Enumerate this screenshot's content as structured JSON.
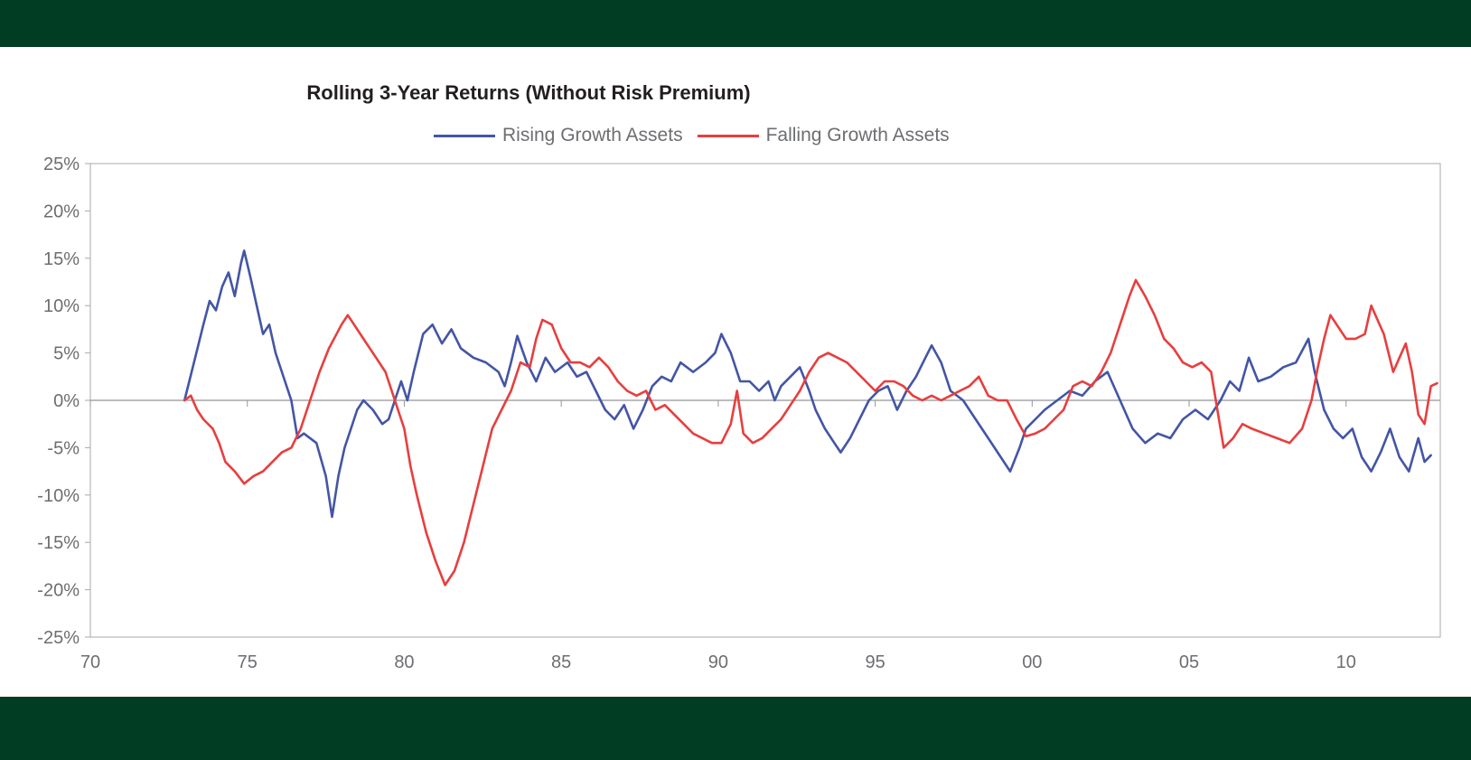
{
  "chart_data": {
    "type": "line",
    "title": "Rolling 3-Year Returns (Without Risk Premium)",
    "xlabel": "",
    "ylabel": "",
    "xlim": [
      1970,
      2013
    ],
    "ylim": [
      -25,
      25
    ],
    "y_ticks": [
      "25%",
      "20%",
      "15%",
      "10%",
      "5%",
      "0%",
      "-5%",
      "-10%",
      "-15%",
      "-20%",
      "-25%"
    ],
    "y_tick_values": [
      25,
      20,
      15,
      10,
      5,
      0,
      -5,
      -10,
      -15,
      -20,
      -25
    ],
    "x_ticks": [
      "70",
      "75",
      "80",
      "85",
      "90",
      "95",
      "00",
      "05",
      "10"
    ],
    "x_tick_values": [
      1970,
      1975,
      1980,
      1985,
      1990,
      1995,
      2000,
      2005,
      2010
    ],
    "grid": false,
    "legend_position": "top-center",
    "series": [
      {
        "name": "Rising Growth Assets",
        "color": "#4355a5",
        "points": [
          [
            1973.0,
            0
          ],
          [
            1973.3,
            4
          ],
          [
            1973.6,
            8
          ],
          [
            1973.8,
            10.5
          ],
          [
            1974.0,
            9.5
          ],
          [
            1974.2,
            12
          ],
          [
            1974.4,
            13.5
          ],
          [
            1974.6,
            11
          ],
          [
            1974.8,
            14.5
          ],
          [
            1974.9,
            15.8
          ],
          [
            1975.1,
            13
          ],
          [
            1975.3,
            10
          ],
          [
            1975.5,
            7
          ],
          [
            1975.7,
            8
          ],
          [
            1975.9,
            5
          ],
          [
            1976.2,
            2
          ],
          [
            1976.4,
            0
          ],
          [
            1976.6,
            -4
          ],
          [
            1976.8,
            -3.5
          ],
          [
            1977.0,
            -4
          ],
          [
            1977.2,
            -4.5
          ],
          [
            1977.5,
            -8
          ],
          [
            1977.7,
            -12.3
          ],
          [
            1977.9,
            -8
          ],
          [
            1978.1,
            -5
          ],
          [
            1978.3,
            -3
          ],
          [
            1978.5,
            -1
          ],
          [
            1978.7,
            0
          ],
          [
            1979.0,
            -1
          ],
          [
            1979.3,
            -2.5
          ],
          [
            1979.5,
            -2
          ],
          [
            1979.7,
            0
          ],
          [
            1979.9,
            2
          ],
          [
            1980.1,
            0
          ],
          [
            1980.3,
            3
          ],
          [
            1980.6,
            7
          ],
          [
            1980.9,
            8
          ],
          [
            1981.2,
            6
          ],
          [
            1981.5,
            7.5
          ],
          [
            1981.8,
            5.5
          ],
          [
            1982.2,
            4.5
          ],
          [
            1982.6,
            4
          ],
          [
            1983.0,
            3
          ],
          [
            1983.2,
            1.5
          ],
          [
            1983.4,
            4
          ],
          [
            1983.6,
            6.8
          ],
          [
            1983.9,
            4
          ],
          [
            1984.2,
            2
          ],
          [
            1984.5,
            4.5
          ],
          [
            1984.8,
            3
          ],
          [
            1985.2,
            4
          ],
          [
            1985.5,
            2.5
          ],
          [
            1985.8,
            3
          ],
          [
            1986.1,
            1
          ],
          [
            1986.4,
            -1
          ],
          [
            1986.7,
            -2
          ],
          [
            1987.0,
            -0.5
          ],
          [
            1987.3,
            -3
          ],
          [
            1987.6,
            -1
          ],
          [
            1987.9,
            1.5
          ],
          [
            1988.2,
            2.5
          ],
          [
            1988.5,
            2
          ],
          [
            1988.8,
            4
          ],
          [
            1989.2,
            3
          ],
          [
            1989.6,
            4
          ],
          [
            1989.9,
            5
          ],
          [
            1990.1,
            7
          ],
          [
            1990.4,
            5
          ],
          [
            1990.7,
            2
          ],
          [
            1991.0,
            2
          ],
          [
            1991.3,
            1
          ],
          [
            1991.6,
            2
          ],
          [
            1991.8,
            0
          ],
          [
            1992.0,
            1.5
          ],
          [
            1992.3,
            2.5
          ],
          [
            1992.6,
            3.5
          ],
          [
            1992.9,
            1
          ],
          [
            1993.1,
            -1
          ],
          [
            1993.4,
            -3
          ],
          [
            1993.7,
            -4.5
          ],
          [
            1993.9,
            -5.5
          ],
          [
            1994.2,
            -4
          ],
          [
            1994.5,
            -2
          ],
          [
            1994.8,
            0
          ],
          [
            1995.1,
            1
          ],
          [
            1995.4,
            1.5
          ],
          [
            1995.7,
            -1
          ],
          [
            1996.0,
            1
          ],
          [
            1996.3,
            2.5
          ],
          [
            1996.6,
            4.5
          ],
          [
            1996.8,
            5.8
          ],
          [
            1997.1,
            4
          ],
          [
            1997.4,
            1
          ],
          [
            1997.8,
            0
          ],
          [
            1998.2,
            -2
          ],
          [
            1998.6,
            -4
          ],
          [
            1999.0,
            -6
          ],
          [
            1999.3,
            -7.5
          ],
          [
            1999.6,
            -5
          ],
          [
            1999.8,
            -3
          ],
          [
            2000.1,
            -2
          ],
          [
            2000.4,
            -1
          ],
          [
            2000.8,
            0
          ],
          [
            2001.2,
            1
          ],
          [
            2001.6,
            0.5
          ],
          [
            2002.0,
            2
          ],
          [
            2002.4,
            3
          ],
          [
            2002.8,
            0
          ],
          [
            2003.2,
            -3
          ],
          [
            2003.6,
            -4.5
          ],
          [
            2004.0,
            -3.5
          ],
          [
            2004.4,
            -4
          ],
          [
            2004.8,
            -2
          ],
          [
            2005.2,
            -1
          ],
          [
            2005.6,
            -2
          ],
          [
            2006.0,
            0
          ],
          [
            2006.3,
            2
          ],
          [
            2006.6,
            1
          ],
          [
            2006.9,
            4.5
          ],
          [
            2007.2,
            2
          ],
          [
            2007.6,
            2.5
          ],
          [
            2008.0,
            3.5
          ],
          [
            2008.4,
            4
          ],
          [
            2008.8,
            6.5
          ],
          [
            2009.0,
            3
          ],
          [
            2009.3,
            -1
          ],
          [
            2009.6,
            -3
          ],
          [
            2009.9,
            -4
          ],
          [
            2010.2,
            -3
          ],
          [
            2010.5,
            -6
          ],
          [
            2010.8,
            -7.5
          ],
          [
            2011.1,
            -5.5
          ],
          [
            2011.4,
            -3
          ],
          [
            2011.7,
            -6
          ],
          [
            2012.0,
            -7.5
          ],
          [
            2012.3,
            -4
          ],
          [
            2012.5,
            -6.5
          ],
          [
            2012.7,
            -5.8
          ]
        ]
      },
      {
        "name": "Falling Growth Assets",
        "color": "#e83e3e",
        "points": [
          [
            1973.0,
            0
          ],
          [
            1973.2,
            0.5
          ],
          [
            1973.4,
            -1
          ],
          [
            1973.6,
            -2
          ],
          [
            1973.9,
            -3
          ],
          [
            1974.1,
            -4.5
          ],
          [
            1974.3,
            -6.5
          ],
          [
            1974.6,
            -7.5
          ],
          [
            1974.9,
            -8.8
          ],
          [
            1975.2,
            -8
          ],
          [
            1975.5,
            -7.5
          ],
          [
            1975.8,
            -6.5
          ],
          [
            1976.1,
            -5.5
          ],
          [
            1976.4,
            -5
          ],
          [
            1976.7,
            -3
          ],
          [
            1977.0,
            0
          ],
          [
            1977.3,
            3
          ],
          [
            1977.6,
            5.5
          ],
          [
            1978.0,
            8
          ],
          [
            1978.2,
            9
          ],
          [
            1978.5,
            7.5
          ],
          [
            1978.8,
            6
          ],
          [
            1979.1,
            4.5
          ],
          [
            1979.4,
            3
          ],
          [
            1979.7,
            0
          ],
          [
            1980.0,
            -3
          ],
          [
            1980.2,
            -7
          ],
          [
            1980.4,
            -10
          ],
          [
            1980.7,
            -14
          ],
          [
            1981.0,
            -17
          ],
          [
            1981.3,
            -19.5
          ],
          [
            1981.6,
            -18
          ],
          [
            1981.9,
            -15
          ],
          [
            1982.2,
            -11
          ],
          [
            1982.5,
            -7
          ],
          [
            1982.8,
            -3
          ],
          [
            1983.1,
            -1
          ],
          [
            1983.4,
            1
          ],
          [
            1983.7,
            4
          ],
          [
            1984.0,
            3.5
          ],
          [
            1984.2,
            6.5
          ],
          [
            1984.4,
            8.5
          ],
          [
            1984.7,
            8
          ],
          [
            1985.0,
            5.5
          ],
          [
            1985.3,
            4
          ],
          [
            1985.6,
            4
          ],
          [
            1985.9,
            3.5
          ],
          [
            1986.2,
            4.5
          ],
          [
            1986.5,
            3.5
          ],
          [
            1986.8,
            2
          ],
          [
            1987.1,
            1
          ],
          [
            1987.4,
            0.5
          ],
          [
            1987.7,
            1
          ],
          [
            1988.0,
            -1
          ],
          [
            1988.3,
            -0.5
          ],
          [
            1988.6,
            -1.5
          ],
          [
            1988.9,
            -2.5
          ],
          [
            1989.2,
            -3.5
          ],
          [
            1989.5,
            -4
          ],
          [
            1989.8,
            -4.5
          ],
          [
            1990.1,
            -4.5
          ],
          [
            1990.4,
            -2.5
          ],
          [
            1990.6,
            1
          ],
          [
            1990.8,
            -3.5
          ],
          [
            1991.1,
            -4.5
          ],
          [
            1991.4,
            -4
          ],
          [
            1991.7,
            -3
          ],
          [
            1992.0,
            -2
          ],
          [
            1992.3,
            -0.5
          ],
          [
            1992.6,
            1
          ],
          [
            1992.9,
            3
          ],
          [
            1993.2,
            4.5
          ],
          [
            1993.5,
            5
          ],
          [
            1993.8,
            4.5
          ],
          [
            1994.1,
            4
          ],
          [
            1994.4,
            3
          ],
          [
            1994.7,
            2
          ],
          [
            1995.0,
            1
          ],
          [
            1995.3,
            2
          ],
          [
            1995.6,
            2
          ],
          [
            1995.9,
            1.5
          ],
          [
            1996.2,
            0.5
          ],
          [
            1996.5,
            0
          ],
          [
            1996.8,
            0.5
          ],
          [
            1997.1,
            0
          ],
          [
            1997.4,
            0.5
          ],
          [
            1997.7,
            1
          ],
          [
            1998.0,
            1.5
          ],
          [
            1998.3,
            2.5
          ],
          [
            1998.6,
            0.5
          ],
          [
            1998.9,
            0
          ],
          [
            1999.2,
            0
          ],
          [
            1999.5,
            -2
          ],
          [
            1999.8,
            -3.8
          ],
          [
            2000.1,
            -3.5
          ],
          [
            2000.4,
            -3
          ],
          [
            2000.7,
            -2
          ],
          [
            2001.0,
            -1
          ],
          [
            2001.3,
            1.5
          ],
          [
            2001.6,
            2
          ],
          [
            2001.9,
            1.5
          ],
          [
            2002.2,
            3
          ],
          [
            2002.5,
            5
          ],
          [
            2002.8,
            8
          ],
          [
            2003.1,
            11
          ],
          [
            2003.3,
            12.7
          ],
          [
            2003.6,
            11
          ],
          [
            2003.9,
            9
          ],
          [
            2004.2,
            6.5
          ],
          [
            2004.5,
            5.5
          ],
          [
            2004.8,
            4
          ],
          [
            2005.1,
            3.5
          ],
          [
            2005.4,
            4
          ],
          [
            2005.7,
            3
          ],
          [
            2005.9,
            -1
          ],
          [
            2006.1,
            -5
          ],
          [
            2006.4,
            -4
          ],
          [
            2006.7,
            -2.5
          ],
          [
            2007.0,
            -3
          ],
          [
            2007.4,
            -3.5
          ],
          [
            2007.8,
            -4
          ],
          [
            2008.2,
            -4.5
          ],
          [
            2008.6,
            -3
          ],
          [
            2008.9,
            0
          ],
          [
            2009.1,
            3.5
          ],
          [
            2009.3,
            6.5
          ],
          [
            2009.5,
            9
          ],
          [
            2009.7,
            8
          ],
          [
            2010.0,
            6.5
          ],
          [
            2010.3,
            6.5
          ],
          [
            2010.6,
            7
          ],
          [
            2010.8,
            10
          ],
          [
            2011.0,
            8.5
          ],
          [
            2011.2,
            7
          ],
          [
            2011.5,
            3
          ],
          [
            2011.7,
            4.5
          ],
          [
            2011.9,
            6
          ],
          [
            2012.1,
            3
          ],
          [
            2012.3,
            -1.5
          ],
          [
            2012.5,
            -2.5
          ],
          [
            2012.7,
            1.5
          ],
          [
            2012.9,
            1.8
          ]
        ]
      }
    ]
  }
}
